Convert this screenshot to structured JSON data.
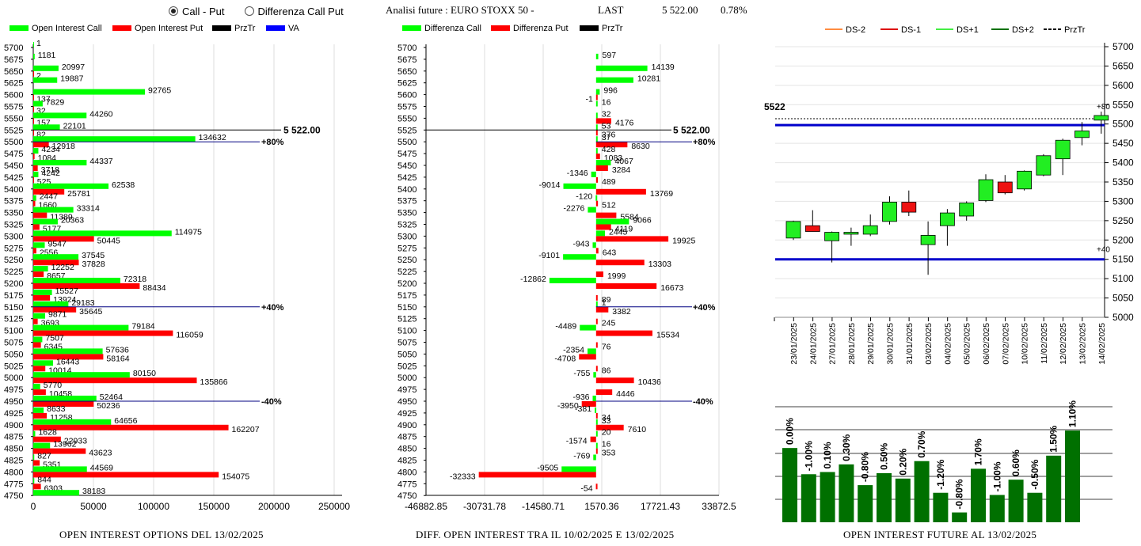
{
  "controls": {
    "options": [
      "Call - Put",
      "Differenza Call Put"
    ],
    "selected": 0
  },
  "header": {
    "title": "Analisi future : EURO STOXX 50 -",
    "last_label": "LAST",
    "last_value": "5 522.00",
    "change": "0.78%"
  },
  "footers": {
    "left": "OPEN INTEREST OPTIONS DEL 13/02/2025",
    "middle": "DIFF. OPEN INTEREST TRA IL 10/02/2025 E 13/02/2025",
    "right": "OPEN INTEREST FUTURE AL 13/02/2025"
  },
  "colors": {
    "call": "#00ff00",
    "put": "#ff0000",
    "prztr": "#000000",
    "va": "#0000ff",
    "dark_green": "#007000",
    "ds_minus2": "#ff8c40",
    "ds_minus1": "#dd0000",
    "ds_plus1": "#44ee44",
    "ds_plus2": "#007000"
  },
  "chart_data": [
    {
      "id": "open-interest",
      "type": "bar",
      "orientation": "horizontal",
      "legend": [
        "Open Interest Call",
        "Open Interest Put",
        "PrzTr",
        "VA"
      ],
      "strikes": [
        5700,
        5675,
        5650,
        5625,
        5600,
        5575,
        5550,
        5525,
        5500,
        5475,
        5450,
        5425,
        5400,
        5375,
        5350,
        5325,
        5300,
        5275,
        5250,
        5225,
        5200,
        5175,
        5150,
        5125,
        5100,
        5075,
        5050,
        5025,
        5000,
        4975,
        4950,
        4925,
        4900,
        4875,
        4850,
        4825,
        4800,
        4775,
        4750
      ],
      "call": [
        1,
        1181,
        20997,
        19887,
        92765,
        7829,
        44260,
        22101,
        134632,
        4234,
        44337,
        4242,
        62538,
        2447,
        33314,
        20363,
        114975,
        9547,
        37545,
        12252,
        72318,
        15527,
        29183,
        9871,
        79184,
        7507,
        57636,
        16443,
        80150,
        5770,
        52464,
        8633,
        64656,
        1628,
        13962,
        827,
        44569,
        844,
        38183
      ],
      "put": [
        null,
        null,
        2,
        null,
        137,
        32,
        157,
        82,
        12918,
        1084,
        3718,
        525,
        25781,
        1660,
        11389,
        5177,
        50445,
        2556,
        37828,
        8657,
        88434,
        13924,
        35645,
        3693,
        116059,
        6345,
        58164,
        10014,
        135866,
        10458,
        50236,
        11258,
        162207,
        22933,
        43623,
        5351,
        154075,
        6303,
        null
      ],
      "x_ticks": [
        "0",
        "50000",
        "100000",
        "150000",
        "200000",
        "250000"
      ],
      "xlim": [
        0,
        250000
      ],
      "last_price": "5 522.00",
      "pct_lines": [
        {
          "strike": 5500,
          "label": "+80%"
        },
        {
          "strike": 5150,
          "label": "+40%"
        },
        {
          "strike": 4950,
          "label": "-40%"
        }
      ]
    },
    {
      "id": "oi-difference",
      "type": "bar",
      "orientation": "horizontal",
      "legend": [
        "Differenza Call",
        "Differenza Put",
        "PrzTr"
      ],
      "call": [
        null,
        597,
        14139,
        10281,
        996,
        16,
        32,
        53,
        37,
        428,
        4067,
        -1346,
        -9014,
        -120,
        -2276,
        9066,
        2445,
        -943,
        -9101,
        null,
        -12862,
        null,
        1,
        null,
        -4489,
        null,
        -2354,
        null,
        -755,
        null,
        -936,
        -381,
        33,
        20,
        16,
        -769,
        -9505,
        null,
        null
      ],
      "put": [
        null,
        null,
        null,
        null,
        -1,
        null,
        4176,
        376,
        8630,
        1083,
        3284,
        489,
        13769,
        512,
        5584,
        4119,
        19925,
        643,
        13303,
        1999,
        16673,
        89,
        3382,
        245,
        15534,
        76,
        -4708,
        86,
        10436,
        4446,
        -3950,
        34,
        7610,
        -1574,
        353,
        null,
        -32333,
        -54,
        null
      ],
      "call_labels": [
        "",
        "597",
        "14139",
        "10281",
        "996",
        "16",
        "32",
        "53",
        "37",
        "428",
        "4067",
        "-1346",
        "-9014",
        "-120",
        "-2276",
        "9066",
        "2445",
        "-943",
        "-9101",
        "",
        "-12862",
        "",
        "1",
        "",
        "-4489",
        "",
        "-2354",
        "",
        "-755",
        "",
        "-936",
        "-381",
        "33",
        "20",
        "16",
        "-769",
        "-9505",
        "",
        ""
      ],
      "put_labels": [
        "",
        "",
        "",
        "",
        "-1",
        "",
        "4176",
        "376",
        "8630",
        "1083",
        "3284",
        "489",
        "13769",
        "512",
        "5584",
        "4119",
        "19925",
        "643",
        "13303",
        "1999",
        "16673",
        "89",
        "3382",
        "245",
        "15534",
        "76",
        "-4708",
        "86",
        "10436",
        "4446",
        "-3950",
        "34",
        "7610",
        "-1574",
        "353",
        "",
        "-32333",
        "-54",
        ""
      ],
      "x_ticks": [
        "-46882.85",
        "-30731.78",
        "-14580.71",
        "1570.36",
        "17721.43",
        "33872.5"
      ],
      "xlim": [
        -46882.85,
        33872.5
      ],
      "last_price": "5 522.00",
      "pct_lines": [
        {
          "strike": 5500,
          "label": "+80%"
        },
        {
          "strike": 5150,
          "label": "+40%"
        },
        {
          "strike": 4950,
          "label": "-40%"
        }
      ]
    },
    {
      "id": "future-candles",
      "type": "candlestick",
      "legend": [
        "DS-2",
        "DS-1",
        "DS+1",
        "DS+2",
        "PrzTr"
      ],
      "dates": [
        "23/01/2025",
        "24/01/2025",
        "27/01/2025",
        "28/01/2025",
        "29/01/2025",
        "30/01/2025",
        "31/01/2025",
        "03/02/2025",
        "04/02/2025",
        "05/02/2025",
        "06/02/2025",
        "07/02/2025",
        "10/02/2025",
        "11/02/2025",
        "12/02/2025",
        "13/02/2025",
        "14/02/2025"
      ],
      "candles": [
        {
          "o": 5205,
          "h": 5250,
          "l": 5200,
          "c": 5248
        },
        {
          "o": 5237,
          "h": 5277,
          "l": 5222,
          "c": 5222
        },
        {
          "o": 5198,
          "h": 5222,
          "l": 5142,
          "c": 5220
        },
        {
          "o": 5215,
          "h": 5232,
          "l": 5185,
          "c": 5220
        },
        {
          "o": 5215,
          "h": 5266,
          "l": 5210,
          "c": 5237
        },
        {
          "o": 5248,
          "h": 5313,
          "l": 5240,
          "c": 5298
        },
        {
          "o": 5298,
          "h": 5328,
          "l": 5262,
          "c": 5272
        },
        {
          "o": 5188,
          "h": 5248,
          "l": 5110,
          "c": 5212
        },
        {
          "o": 5237,
          "h": 5280,
          "l": 5185,
          "c": 5270
        },
        {
          "o": 5262,
          "h": 5300,
          "l": 5250,
          "c": 5296
        },
        {
          "o": 5302,
          "h": 5370,
          "l": 5298,
          "c": 5356
        },
        {
          "o": 5350,
          "h": 5368,
          "l": 5318,
          "c": 5322
        },
        {
          "o": 5332,
          "h": 5380,
          "l": 5328,
          "c": 5378
        },
        {
          "o": 5368,
          "h": 5422,
          "l": 5365,
          "c": 5418
        },
        {
          "o": 5410,
          "h": 5462,
          "l": 5368,
          "c": 5458
        },
        {
          "o": 5465,
          "h": 5505,
          "l": 5445,
          "c": 5482
        },
        {
          "o": 5510,
          "h": 5532,
          "l": 5475,
          "c": 5522
        }
      ],
      "y_ticks": [
        5700,
        5650,
        5600,
        5550,
        5500,
        5450,
        5400,
        5350,
        5300,
        5250,
        5200,
        5150,
        5100,
        5050,
        5000
      ],
      "ylim": [
        5000,
        5700
      ],
      "last_label": "5522",
      "przTr": 5522,
      "va_lines": [
        5497,
        5150
      ],
      "annotations": [
        {
          "value": 5522,
          "label": "+80"
        },
        {
          "value": 5150,
          "label": "+40"
        }
      ]
    },
    {
      "id": "future-oi-change",
      "type": "bar",
      "values": [
        0.0,
        -1.0,
        0.1,
        0.3,
        -0.8,
        0.5,
        0.2,
        0.7,
        -1.2,
        -0.8,
        1.7,
        -1.0,
        0.6,
        -0.5,
        1.5,
        1.1
      ],
      "labels": [
        "0.00%",
        "-1.00%",
        "0.10%",
        "0.30%",
        "-0.80%",
        "0.50%",
        "0.20%",
        "0.70%",
        "-1.20%",
        "-0.80%",
        "1.70%",
        "-1.00%",
        "0.60%",
        "-0.50%",
        "1.50%",
        "1.10%"
      ],
      "heights": [
        0.68,
        0.44,
        0.46,
        0.53,
        0.34,
        0.45,
        0.4,
        0.56,
        0.27,
        0.09,
        0.49,
        0.25,
        0.39,
        0.27,
        0.61,
        0.84
      ]
    }
  ]
}
